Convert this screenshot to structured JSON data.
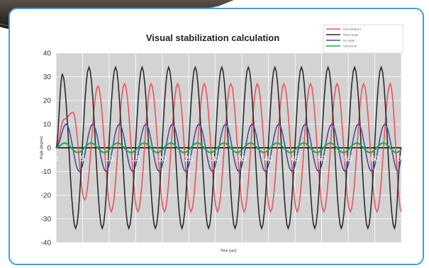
{
  "chart_data": {
    "type": "line",
    "title": "Visual stabilization calculation",
    "xlabel": "Time [sec]",
    "ylabel": "Angle [degree]",
    "xlim": [
      0,
      65
    ],
    "ylim": [
      -40,
      40
    ],
    "x_ticks": [
      0,
      5,
      10,
      15,
      20,
      25,
      30,
      35,
      40,
      45,
      50,
      55,
      60,
      65
    ],
    "x_tick_labels": [
      "0",
      "5",
      "10",
      "15",
      "20",
      "25",
      "30",
      "35",
      "40",
      "45",
      "50",
      "55",
      "60",
      "65"
    ],
    "y_ticks": [
      -40,
      -30,
      -20,
      -10,
      0,
      10,
      20,
      30,
      40
    ],
    "y_tick_labels": [
      "-40",
      "-30",
      "-20",
      "-10",
      "0",
      "10",
      "20",
      "30",
      "40"
    ],
    "grid": true,
    "legend_position": "top-right",
    "series": [
      {
        "name": "Roll stabilized",
        "color": "#e8545a",
        "x": [
          0,
          1.5,
          3.2,
          5.4,
          7.9,
          10.4,
          12.9,
          15.4,
          17.9,
          20.4,
          22.9,
          25.4,
          27.9,
          30.4,
          32.9,
          35.4,
          37.9,
          40.4,
          42.9,
          45.4,
          47.9,
          50.4,
          52.9,
          55.4,
          57.9,
          60.4,
          62.9,
          65
        ],
        "y": [
          0,
          12,
          15,
          -22,
          26,
          -27,
          27,
          -27,
          27,
          -27,
          27,
          -27,
          27,
          -27,
          27,
          -27,
          27,
          -27,
          27,
          -27,
          27,
          -27,
          27,
          -27,
          27,
          -27,
          27,
          -27
        ]
      },
      {
        "name": "Wave angle",
        "color": "#2b2b2b",
        "x": [
          0,
          1.2,
          3.7,
          6.2,
          8.7,
          11.2,
          13.7,
          16.2,
          18.7,
          21.2,
          23.7,
          26.2,
          28.7,
          31.2,
          33.7,
          36.2,
          38.7,
          41.2,
          43.7,
          46.2,
          48.7,
          51.2,
          53.7,
          56.2,
          58.7,
          61.2,
          63.7,
          65
        ],
        "y": [
          0,
          31,
          -34,
          34,
          -34,
          34,
          -34,
          34,
          -34,
          34,
          -34,
          34,
          -34,
          34,
          -34,
          34,
          -34,
          34,
          -34,
          34,
          -34,
          34,
          -34,
          34,
          -34,
          34,
          -34,
          0
        ]
      },
      {
        "name": "Fin angle",
        "color": "#4a4d9a",
        "x": [
          0,
          1.9,
          4.4,
          6.9,
          9.4,
          11.9,
          14.4,
          16.9,
          19.4,
          21.9,
          24.4,
          26.9,
          29.4,
          31.9,
          34.4,
          36.9,
          39.4,
          41.9,
          44.4,
          46.9,
          49.4,
          51.9,
          54.4,
          56.9,
          59.4,
          61.9,
          64.4,
          65
        ],
        "y": [
          0,
          10,
          -10,
          10,
          -10,
          10,
          -10,
          10,
          -10,
          10,
          -10,
          10,
          -10,
          10,
          -10,
          10,
          -10,
          10,
          -10,
          10,
          -10,
          10,
          -10,
          10,
          -10,
          10,
          -10,
          -5
        ]
      },
      {
        "name": "Camera tilt",
        "color": "#1aa84a",
        "x": [
          0,
          1.6,
          4.1,
          6.6,
          9.1,
          11.6,
          14.1,
          16.6,
          19.1,
          21.6,
          24.1,
          26.6,
          29.1,
          31.6,
          34.1,
          36.6,
          39.1,
          41.6,
          44.1,
          46.6,
          49.1,
          51.6,
          54.1,
          56.6,
          59.1,
          61.6,
          64.1,
          65
        ],
        "y": [
          0,
          2,
          -2,
          2,
          -2,
          2,
          -2,
          2,
          -2,
          2,
          -2,
          2,
          -2,
          2,
          -2,
          2,
          -2,
          2,
          -2,
          2,
          -2,
          2,
          -2,
          2,
          -2,
          2,
          -2,
          -1
        ]
      }
    ]
  }
}
